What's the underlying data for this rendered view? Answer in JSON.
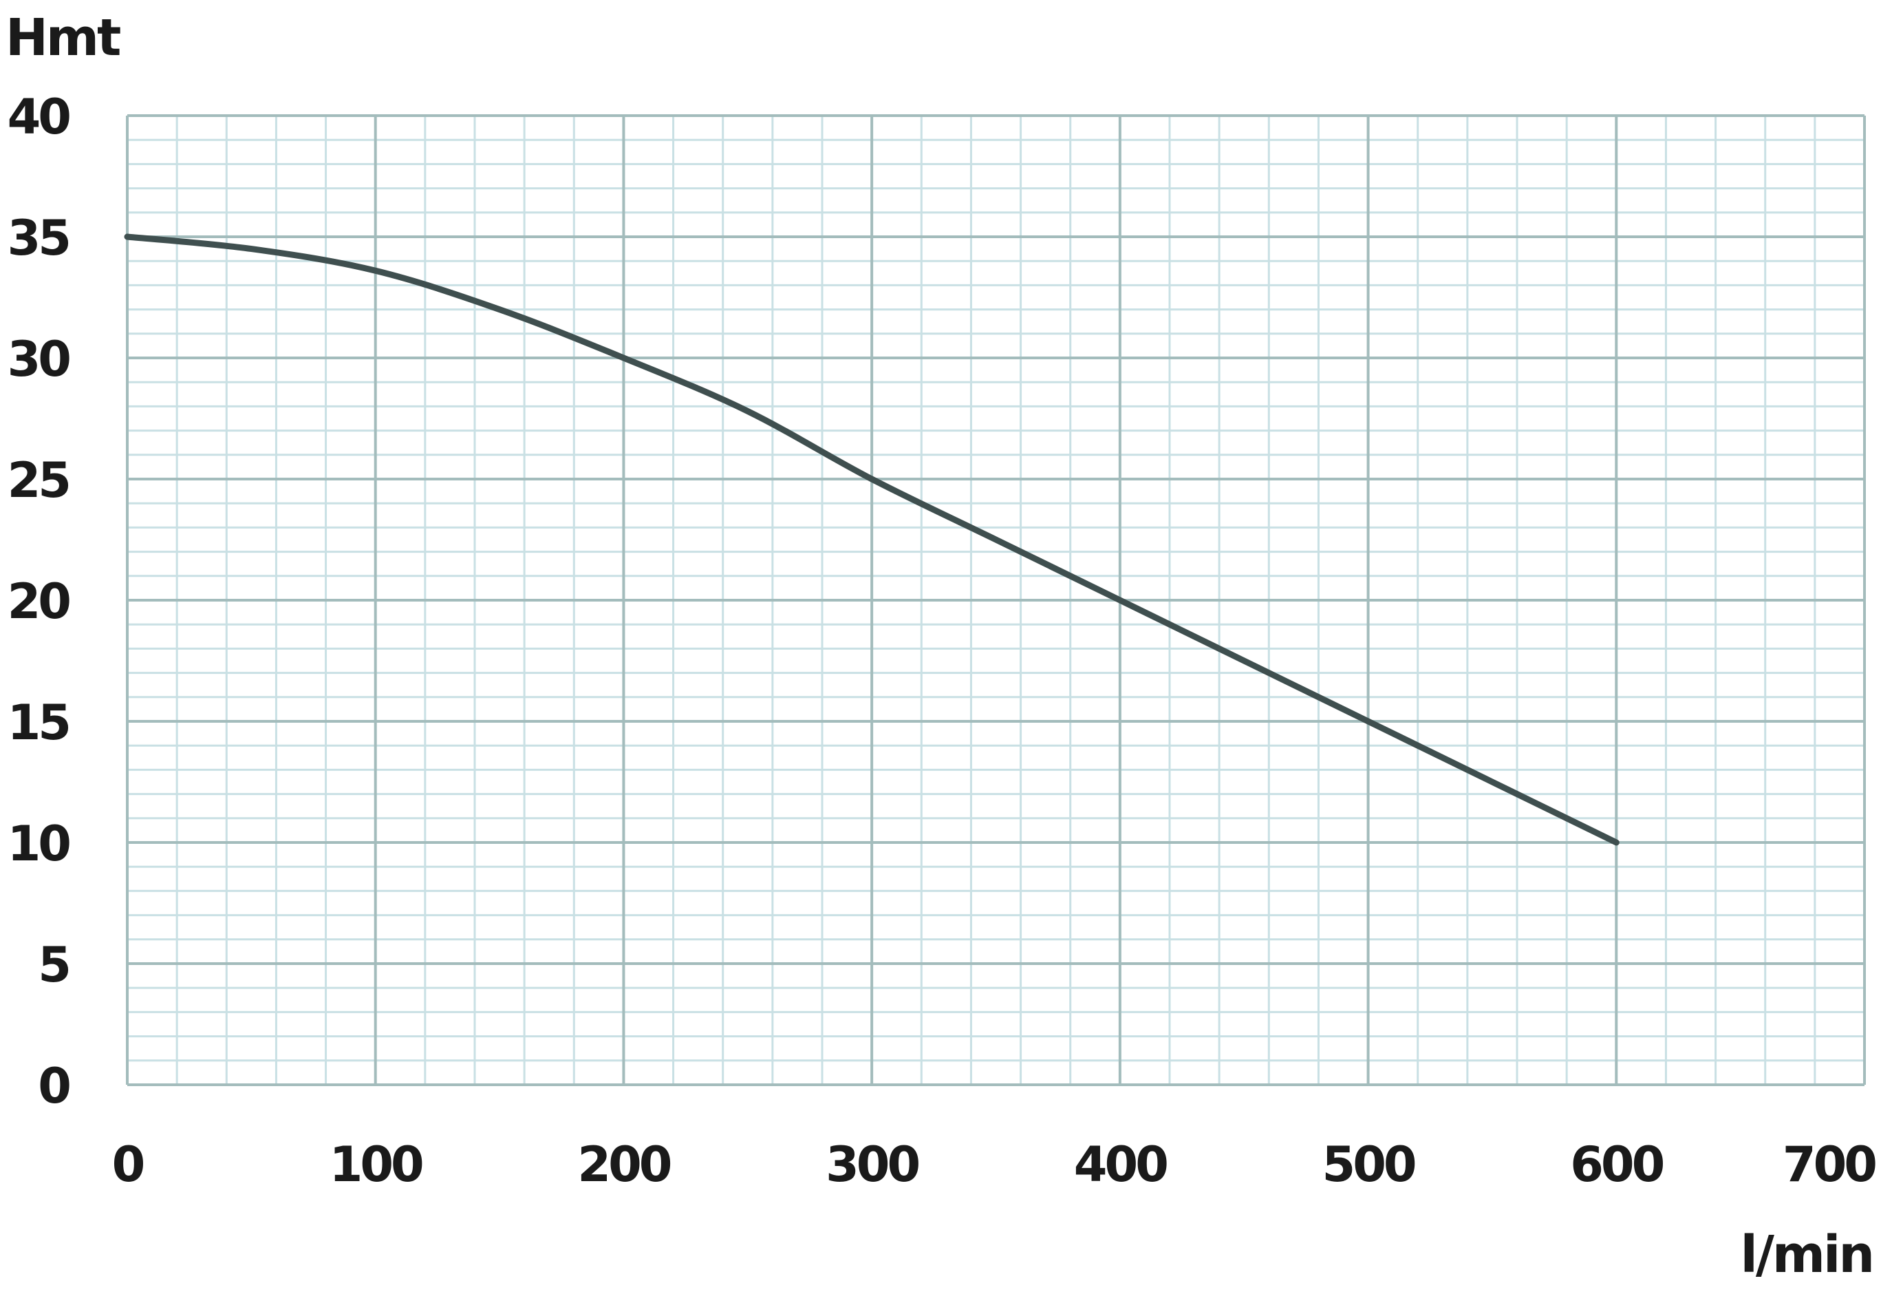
{
  "chart_data": {
    "type": "line",
    "title": "",
    "xlabel": "l/min",
    "ylabel": "Hmt",
    "xlim": [
      0,
      700
    ],
    "ylim": [
      0,
      40
    ],
    "x_ticks": [
      0,
      100,
      200,
      300,
      400,
      500,
      600,
      700
    ],
    "y_ticks": [
      0,
      5,
      10,
      15,
      20,
      25,
      30,
      35,
      40
    ],
    "x_minor_step": 20,
    "y_minor_step": 1,
    "grid": true,
    "legend": "none",
    "colors": {
      "line": "#3f4f4f",
      "major_grid": "#a3bcbc",
      "minor_grid": "#c9e0e4",
      "text": "#1a1a1a"
    },
    "series": [
      {
        "x": [
          0,
          50,
          100,
          150,
          200,
          250,
          300,
          350,
          400,
          450,
          500,
          550,
          600
        ],
        "y": [
          35,
          34.5,
          33.6,
          32,
          30,
          27.8,
          25,
          22.5,
          20,
          17.5,
          15,
          12.5,
          10
        ]
      }
    ]
  }
}
